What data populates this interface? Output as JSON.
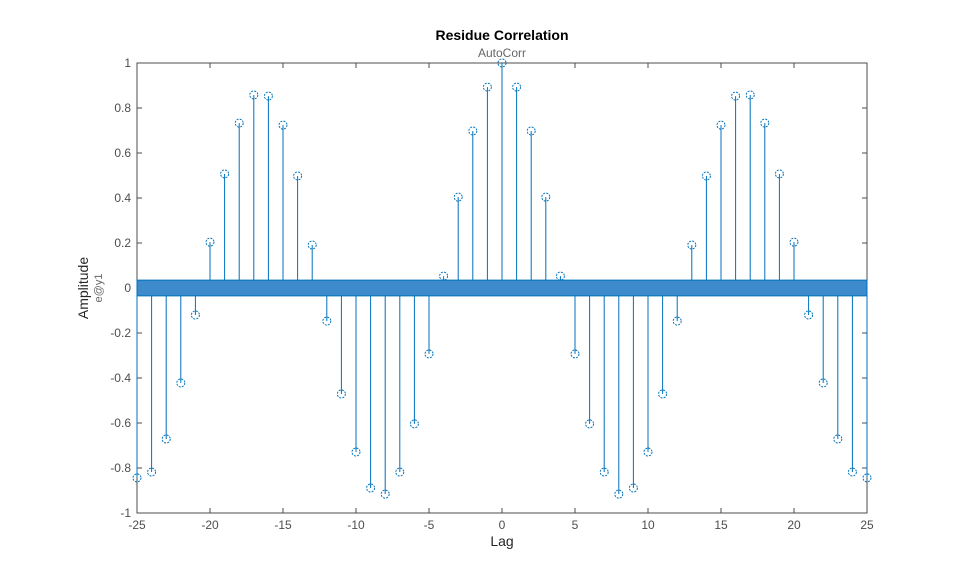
{
  "chart_data": {
    "type": "stem",
    "title": "Residue Correlation",
    "subtitle": "AutoCorr",
    "xlabel": "Lag",
    "ylabel": "Amplitude",
    "ylabel_sub": "e@y1",
    "xlim": [
      -25,
      25
    ],
    "ylim": [
      -1,
      1
    ],
    "xticks": [
      -25,
      -20,
      -15,
      -10,
      -5,
      0,
      5,
      10,
      15,
      20,
      25
    ],
    "yticks": [
      -1,
      -0.8,
      -0.6,
      -0.4,
      -0.2,
      0,
      0.2,
      0.4,
      0.6,
      0.8,
      1
    ],
    "confidence_bound": 0.035,
    "x": [
      -25,
      -24,
      -23,
      -22,
      -21,
      -20,
      -19,
      -18,
      -17,
      -16,
      -15,
      -14,
      -13,
      -12,
      -11,
      -10,
      -9,
      -8,
      -7,
      -6,
      -5,
      -4,
      -3,
      -2,
      -1,
      0,
      1,
      2,
      3,
      4,
      5,
      6,
      7,
      8,
      9,
      10,
      11,
      12,
      13,
      14,
      15,
      16,
      17,
      18,
      19,
      20,
      21,
      22,
      23,
      24,
      25
    ],
    "values": [
      -0.844,
      -0.818,
      -0.671,
      -0.422,
      -0.12,
      0.204,
      0.507,
      0.733,
      0.858,
      0.853,
      0.724,
      0.498,
      0.191,
      -0.147,
      -0.471,
      -0.729,
      -0.889,
      -0.916,
      -0.818,
      -0.604,
      -0.293,
      0.053,
      0.404,
      0.698,
      0.893,
      1.0,
      0.893,
      0.698,
      0.404,
      0.053,
      -0.293,
      -0.604,
      -0.818,
      -0.916,
      -0.889,
      -0.729,
      -0.471,
      -0.147,
      0.191,
      0.498,
      0.724,
      0.853,
      0.858,
      0.733,
      0.507,
      0.204,
      -0.12,
      -0.422,
      -0.671,
      -0.818,
      -0.844
    ],
    "colors": {
      "stem": "#0072BD",
      "band_fill": "#3D8BCA",
      "axis": "#4D4D4D"
    }
  }
}
